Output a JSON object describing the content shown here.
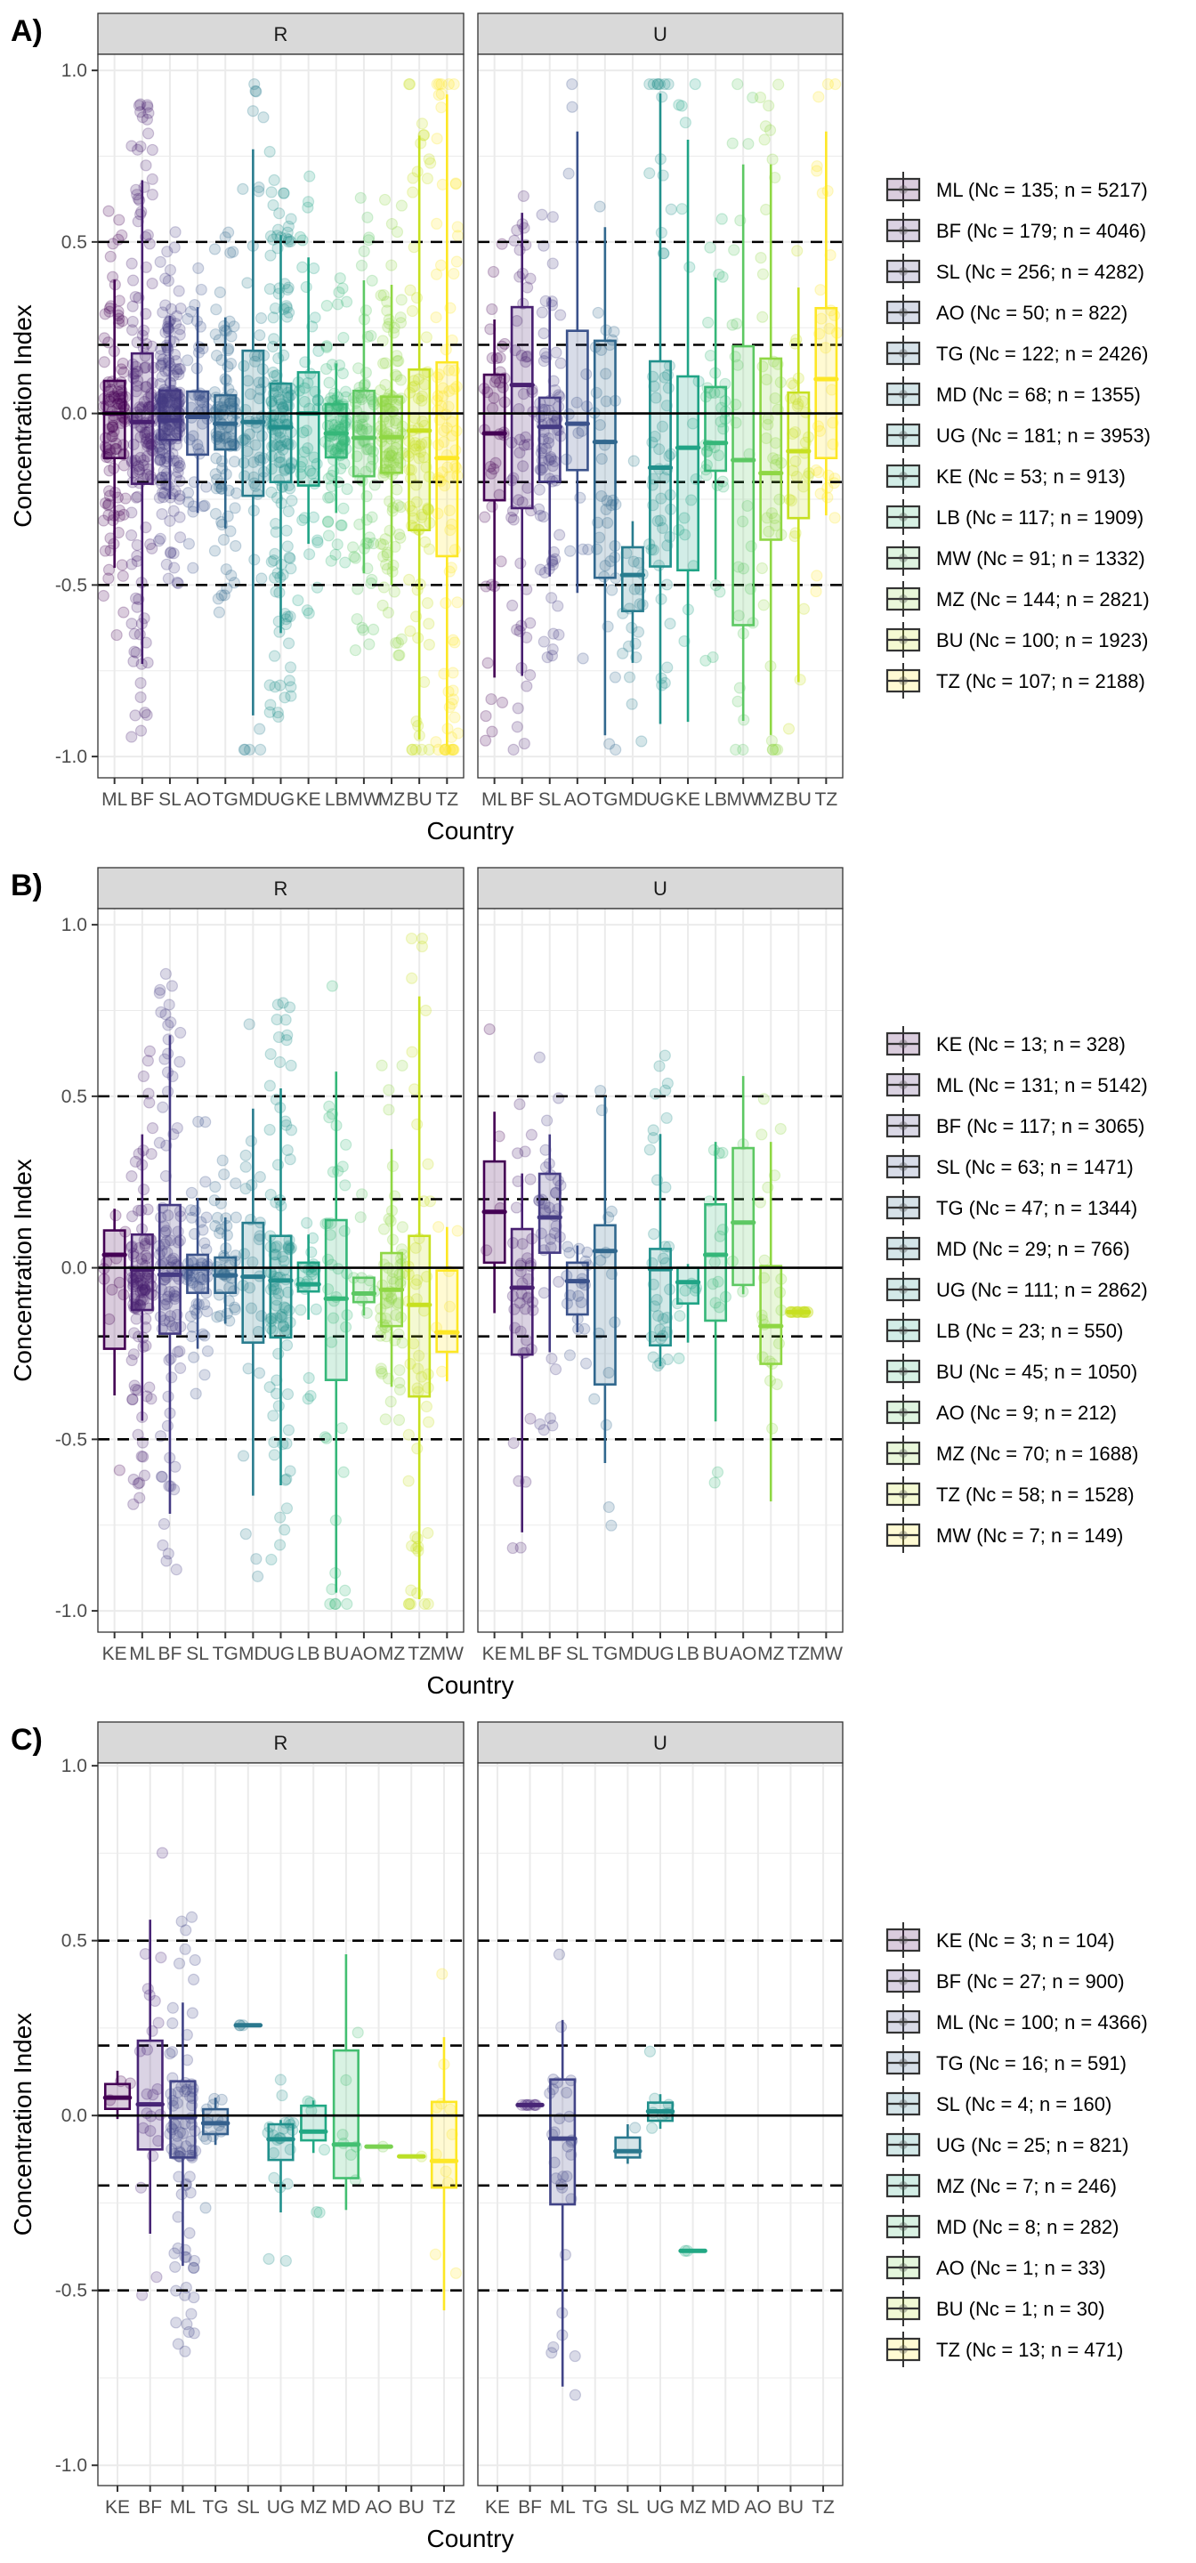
{
  "figure": {
    "reference_lines": [
      0.5,
      0.2,
      -0.2,
      -0.5
    ],
    "zero_line": 0
  },
  "chart_data": [
    {
      "type": "boxplot",
      "panel_label": "A)",
      "facets": [
        "R",
        "U"
      ],
      "xlabel": "Country",
      "ylabel": "Concentration Index",
      "ylim": [
        -1.062,
        1.047
      ],
      "yticks": [
        1.0,
        0.5,
        0.0,
        -0.5,
        -1.0
      ],
      "ytick_labels": [
        "1.0",
        "0.5",
        "0.0",
        "-0.5",
        "-1.0"
      ],
      "grid": true,
      "legend_position": "right",
      "categories": [
        "ML",
        "BF",
        "SL",
        "AO",
        "TG",
        "MD",
        "UG",
        "KE",
        "LB",
        "MW",
        "MZ",
        "BU",
        "TZ"
      ],
      "colors": [
        "#440154",
        "#481F70",
        "#443A83",
        "#3B528B",
        "#31688E",
        "#287C8E",
        "#21908C",
        "#20A486",
        "#35B779",
        "#5DC863",
        "#8FD744",
        "#C7E020",
        "#FDE725"
      ],
      "legend": [
        "ML (Nc = 135; n = 5217)",
        "BF (Nc = 179; n = 4046)",
        "SL (Nc = 256; n = 4282)",
        "AO (Nc = 50; n = 822)",
        "TG (Nc = 122; n = 2426)",
        "MD (Nc = 68; n = 1355)",
        "UG (Nc = 181; n = 3953)",
        "KE (Nc = 53; n = 913)",
        "LB (Nc = 117; n = 1909)",
        "MW (Nc = 91; n = 1332)",
        "MZ (Nc = 144; n = 2821)",
        "BU (Nc = 100; n = 1923)",
        "TZ (Nc = 107; n = 2188)"
      ],
      "point_counts": [
        135,
        179,
        256,
        50,
        122,
        68,
        181,
        53,
        117,
        91,
        144,
        100,
        107
      ],
      "series": {
        "R": [
          {
            "cat": "ML",
            "lo": -0.45,
            "q1": -0.13,
            "med": 0.0,
            "q3": 0.095,
            "hi": 0.39
          },
          {
            "cat": "BF",
            "lo": -0.73,
            "q1": -0.205,
            "med": -0.025,
            "q3": 0.175,
            "hi": 0.68
          },
          {
            "cat": "SL",
            "lo": -0.25,
            "q1": -0.077,
            "med": -0.02,
            "q3": 0.067,
            "hi": 0.285
          },
          {
            "cat": "AO",
            "lo": -0.29,
            "q1": -0.12,
            "med": -0.01,
            "q3": 0.064,
            "hi": 0.31
          },
          {
            "cat": "TG",
            "lo": -0.335,
            "q1": -0.105,
            "med": -0.03,
            "q3": 0.053,
            "hi": 0.28
          },
          {
            "cat": "MD",
            "lo": -0.88,
            "q1": -0.24,
            "med": -0.025,
            "q3": 0.183,
            "hi": 0.77
          },
          {
            "cat": "UG",
            "lo": -0.64,
            "q1": -0.2,
            "med": -0.04,
            "q3": 0.087,
            "hi": 0.52
          },
          {
            "cat": "KE",
            "lo": -0.38,
            "q1": -0.21,
            "med": 0.0,
            "q3": 0.12,
            "hi": 0.455
          },
          {
            "cat": "LB",
            "lo": -0.29,
            "q1": -0.128,
            "med": -0.058,
            "q3": 0.027,
            "hi": 0.146
          },
          {
            "cat": "MW",
            "lo": -0.466,
            "q1": -0.183,
            "med": -0.071,
            "q3": 0.066,
            "hi": 0.388
          },
          {
            "cat": "MZ",
            "lo": -0.5,
            "q1": -0.173,
            "med": -0.069,
            "q3": 0.049,
            "hi": 0.375
          },
          {
            "cat": "BU",
            "lo": -0.95,
            "q1": -0.34,
            "med": -0.05,
            "q3": 0.128,
            "hi": 0.81
          },
          {
            "cat": "TZ",
            "lo": -0.97,
            "q1": -0.416,
            "med": -0.13,
            "q3": 0.149,
            "hi": 0.93
          }
        ],
        "U": [
          {
            "cat": "ML",
            "lo": -0.77,
            "q1": -0.253,
            "med": -0.058,
            "q3": 0.113,
            "hi": 0.274
          },
          {
            "cat": "BF",
            "lo": -0.765,
            "q1": -0.276,
            "med": 0.083,
            "q3": 0.31,
            "hi": 0.585
          },
          {
            "cat": "SL",
            "lo": -0.475,
            "q1": -0.199,
            "med": -0.039,
            "q3": 0.046,
            "hi": 0.338
          },
          {
            "cat": "AO",
            "lo": -0.523,
            "q1": -0.165,
            "med": -0.03,
            "q3": 0.241,
            "hi": 0.822
          },
          {
            "cat": "TG",
            "lo": -0.938,
            "q1": -0.479,
            "med": -0.083,
            "q3": 0.212,
            "hi": 0.543
          },
          {
            "cat": "MD",
            "lo": -0.727,
            "q1": -0.576,
            "med": -0.471,
            "q3": -0.39,
            "hi": -0.314
          },
          {
            "cat": "UG",
            "lo": -0.905,
            "q1": -0.446,
            "med": -0.158,
            "q3": 0.152,
            "hi": 0.933
          },
          {
            "cat": "KE",
            "lo": -0.899,
            "q1": -0.457,
            "med": -0.1,
            "q3": 0.108,
            "hi": 0.798
          },
          {
            "cat": "LB",
            "lo": -0.484,
            "q1": -0.167,
            "med": -0.086,
            "q3": 0.077,
            "hi": 0.396
          },
          {
            "cat": "MW",
            "lo": -0.896,
            "q1": -0.617,
            "med": -0.136,
            "q3": 0.196,
            "hi": 0.726
          },
          {
            "cat": "MZ",
            "lo": -0.937,
            "q1": -0.368,
            "med": -0.174,
            "q3": 0.16,
            "hi": 0.726
          },
          {
            "cat": "BU",
            "lo": -0.783,
            "q1": -0.305,
            "med": -0.11,
            "q3": 0.061,
            "hi": 0.367
          },
          {
            "cat": "TZ",
            "lo": -0.297,
            "q1": -0.13,
            "med": 0.1,
            "q3": 0.307,
            "hi": 0.822
          }
        ]
      }
    },
    {
      "type": "boxplot",
      "panel_label": "B)",
      "facets": [
        "R",
        "U"
      ],
      "xlabel": "Country",
      "ylabel": "Concentration Index",
      "ylim": [
        -1.062,
        1.047
      ],
      "yticks": [
        1.0,
        0.5,
        0.0,
        -0.5,
        -1.0
      ],
      "ytick_labels": [
        "1.0",
        "0.5",
        "0.0",
        "-0.5",
        "-1.0"
      ],
      "grid": true,
      "legend_position": "right",
      "categories": [
        "KE",
        "ML",
        "BF",
        "SL",
        "TG",
        "MD",
        "UG",
        "LB",
        "BU",
        "AO",
        "MZ",
        "TZ",
        "MW"
      ],
      "colors": [
        "#440154",
        "#481F70",
        "#443A83",
        "#3B528B",
        "#31688E",
        "#287C8E",
        "#21908C",
        "#20A486",
        "#35B779",
        "#5DC863",
        "#8FD744",
        "#C7E020",
        "#FDE725"
      ],
      "legend": [
        "KE (Nc = 13; n = 328)",
        "ML (Nc = 131; n = 5142)",
        "BF (Nc = 117; n = 3065)",
        "SL (Nc = 63; n = 1471)",
        "TG (Nc = 47; n = 1344)",
        "MD (Nc = 29; n = 766)",
        "UG (Nc = 111; n = 2862)",
        "LB (Nc = 23; n = 550)",
        "BU (Nc = 45; n = 1050)",
        "AO (Nc = 9; n = 212)",
        "MZ (Nc = 70; n = 1688)",
        "TZ (Nc = 58; n = 1528)",
        "MW (Nc = 7; n = 149)"
      ],
      "point_counts": [
        13,
        131,
        117,
        63,
        47,
        29,
        111,
        23,
        45,
        9,
        70,
        58,
        7
      ],
      "series": {
        "R": [
          {
            "cat": "KE",
            "lo": -0.372,
            "q1": -0.236,
            "med": 0.038,
            "q3": 0.109,
            "hi": 0.172
          },
          {
            "cat": "ML",
            "lo": -0.446,
            "q1": -0.123,
            "med": -0.005,
            "q3": 0.097,
            "hi": 0.389
          },
          {
            "cat": "BF",
            "lo": -0.717,
            "q1": -0.192,
            "med": -0.02,
            "q3": 0.183,
            "hi": 0.678
          },
          {
            "cat": "SL",
            "lo": -0.236,
            "q1": -0.073,
            "med": -0.002,
            "q3": 0.038,
            "hi": 0.204
          },
          {
            "cat": "TG",
            "lo": -0.163,
            "q1": -0.073,
            "med": -0.022,
            "q3": 0.03,
            "hi": 0.147
          },
          {
            "cat": "MD",
            "lo": -0.664,
            "q1": -0.218,
            "med": -0.026,
            "q3": 0.131,
            "hi": 0.464
          },
          {
            "cat": "UG",
            "lo": -0.634,
            "q1": -0.203,
            "med": -0.037,
            "q3": 0.093,
            "hi": 0.523
          },
          {
            "cat": "LB",
            "lo": -0.151,
            "q1": -0.069,
            "med": -0.048,
            "q3": 0.015,
            "hi": 0.097
          },
          {
            "cat": "BU",
            "lo": -0.947,
            "q1": -0.327,
            "med": -0.09,
            "q3": 0.139,
            "hi": 0.572
          },
          {
            "cat": "AO",
            "lo": -0.139,
            "q1": -0.1,
            "med": -0.075,
            "q3": -0.029,
            "hi": -0.029
          },
          {
            "cat": "MZ",
            "lo": -0.347,
            "q1": -0.17,
            "med": -0.064,
            "q3": 0.043,
            "hi": 0.346
          },
          {
            "cat": "TZ",
            "lo": -0.966,
            "q1": -0.375,
            "med": -0.108,
            "q3": 0.093,
            "hi": 0.791
          },
          {
            "cat": "MW",
            "lo": -0.331,
            "q1": -0.245,
            "med": -0.188,
            "q3": -0.008,
            "hi": 0.119
          }
        ],
        "U": [
          {
            "cat": "KE",
            "lo": -0.132,
            "q1": 0.015,
            "med": 0.163,
            "q3": 0.31,
            "hi": 0.455
          },
          {
            "cat": "ML",
            "lo": -0.771,
            "q1": -0.253,
            "med": -0.058,
            "q3": 0.113,
            "hi": 0.275
          },
          {
            "cat": "BF",
            "lo": -0.246,
            "q1": 0.044,
            "med": 0.147,
            "q3": 0.274,
            "hi": 0.389
          },
          {
            "cat": "SL",
            "lo": -0.188,
            "q1": -0.136,
            "med": -0.039,
            "q3": 0.015,
            "hi": 0.065
          },
          {
            "cat": "TG",
            "lo": -0.569,
            "q1": -0.34,
            "med": 0.049,
            "q3": 0.124,
            "hi": 0.499
          },
          {
            "cat": "MD",
            "lo": null,
            "q1": null,
            "med": null,
            "q3": null,
            "hi": null
          },
          {
            "cat": "UG",
            "lo": -0.287,
            "q1": -0.226,
            "med": -0.004,
            "q3": 0.055,
            "hi": 0.39
          },
          {
            "cat": "LB",
            "lo": -0.218,
            "q1": -0.104,
            "med": -0.042,
            "q3": 0.0,
            "hi": 0.011
          },
          {
            "cat": "BU",
            "lo": -0.448,
            "q1": -0.154,
            "med": 0.038,
            "q3": 0.185,
            "hi": 0.367
          },
          {
            "cat": "AO",
            "lo": -0.077,
            "q1": -0.05,
            "med": 0.132,
            "q3": 0.349,
            "hi": 0.559
          },
          {
            "cat": "MZ",
            "lo": -0.681,
            "q1": -0.28,
            "med": -0.17,
            "q3": 0.005,
            "hi": 0.367
          },
          {
            "cat": "TZ",
            "lo": -0.129,
            "q1": -0.129,
            "med": -0.129,
            "q3": -0.129,
            "hi": -0.129
          },
          {
            "cat": "MW",
            "lo": null,
            "q1": null,
            "med": null,
            "q3": null,
            "hi": null
          }
        ]
      }
    },
    {
      "type": "boxplot",
      "panel_label": "C)",
      "facets": [
        "R",
        "U"
      ],
      "xlabel": "Country",
      "ylabel": "Concentration Index",
      "ylim": [
        -1.058,
        1.008
      ],
      "yticks": [
        1.0,
        0.5,
        0.0,
        -0.5,
        -1.0
      ],
      "ytick_labels": [
        "1.0",
        "0.5",
        "0.0",
        "-0.5",
        "-1.0"
      ],
      "grid": true,
      "legend_position": "right",
      "categories": [
        "KE",
        "BF",
        "ML",
        "TG",
        "SL",
        "UG",
        "MZ",
        "MD",
        "AO",
        "BU",
        "TZ"
      ],
      "colors": [
        "#440154",
        "#482576",
        "#414487",
        "#35608D",
        "#2A788E",
        "#21908C",
        "#22A884",
        "#43BF71",
        "#7AD151",
        "#BBDF27",
        "#FDE725"
      ],
      "legend": [
        "KE (Nc = 3; n = 104)",
        "BF (Nc = 27; n = 900)",
        "ML (Nc = 100; n = 4366)",
        "TG (Nc = 16; n = 591)",
        "SL (Nc = 4; n = 160)",
        "UG (Nc = 25; n = 821)",
        "MZ (Nc = 7; n = 246)",
        "MD (Nc = 8; n = 282)",
        "AO (Nc = 1; n = 33)",
        "BU (Nc = 1; n = 30)",
        "TZ (Nc = 13; n = 471)"
      ],
      "point_counts": [
        3,
        27,
        100,
        16,
        4,
        25,
        7,
        8,
        1,
        1,
        13
      ],
      "series": {
        "R": [
          {
            "cat": "KE",
            "lo": -0.01,
            "q1": 0.019,
            "med": 0.051,
            "q3": 0.09,
            "hi": 0.128
          },
          {
            "cat": "BF",
            "lo": -0.338,
            "q1": -0.097,
            "med": 0.032,
            "q3": 0.214,
            "hi": 0.56
          },
          {
            "cat": "ML",
            "lo": -0.43,
            "q1": -0.12,
            "med": -0.005,
            "q3": 0.098,
            "hi": 0.323
          },
          {
            "cat": "TG",
            "lo": -0.084,
            "q1": -0.053,
            "med": -0.022,
            "q3": 0.018,
            "hi": 0.051
          },
          {
            "cat": "SL",
            "lo": 0.258,
            "q1": 0.258,
            "med": 0.258,
            "q3": 0.258,
            "hi": 0.258
          },
          {
            "cat": "UG",
            "lo": -0.277,
            "q1": -0.127,
            "med": -0.068,
            "q3": -0.025,
            "hi": -0.013
          },
          {
            "cat": "MZ",
            "lo": -0.107,
            "q1": -0.071,
            "med": -0.046,
            "q3": 0.028,
            "hi": 0.043
          },
          {
            "cat": "MD",
            "lo": -0.27,
            "q1": -0.179,
            "med": -0.083,
            "q3": 0.186,
            "hi": 0.461
          },
          {
            "cat": "AO",
            "lo": -0.089,
            "q1": -0.089,
            "med": -0.089,
            "q3": -0.089,
            "hi": -0.089
          },
          {
            "cat": "BU",
            "lo": -0.117,
            "q1": -0.117,
            "med": -0.117,
            "q3": -0.117,
            "hi": -0.117
          },
          {
            "cat": "TZ",
            "lo": -0.557,
            "q1": -0.206,
            "med": -0.13,
            "q3": 0.039,
            "hi": 0.224
          }
        ],
        "U": [
          {
            "cat": "KE",
            "lo": null,
            "q1": null,
            "med": null,
            "q3": null,
            "hi": null
          },
          {
            "cat": "BF",
            "lo": 0.03,
            "q1": 0.03,
            "med": 0.03,
            "q3": 0.03,
            "hi": 0.03
          },
          {
            "cat": "ML",
            "lo": -0.775,
            "q1": -0.254,
            "med": -0.066,
            "q3": 0.103,
            "hi": 0.273
          },
          {
            "cat": "TG",
            "lo": null,
            "q1": null,
            "med": null,
            "q3": null,
            "hi": null
          },
          {
            "cat": "SL",
            "lo": -0.138,
            "q1": -0.12,
            "med": -0.102,
            "q3": -0.063,
            "hi": -0.025
          },
          {
            "cat": "UG",
            "lo": -0.038,
            "q1": -0.015,
            "med": 0.012,
            "q3": 0.037,
            "hi": 0.061
          },
          {
            "cat": "MZ",
            "lo": -0.387,
            "q1": -0.387,
            "med": -0.387,
            "q3": -0.387,
            "hi": -0.387
          },
          {
            "cat": "MD",
            "lo": null,
            "q1": null,
            "med": null,
            "q3": null,
            "hi": null
          },
          {
            "cat": "AO",
            "lo": null,
            "q1": null,
            "med": null,
            "q3": null,
            "hi": null
          },
          {
            "cat": "BU",
            "lo": null,
            "q1": null,
            "med": null,
            "q3": null,
            "hi": null
          },
          {
            "cat": "TZ",
            "lo": null,
            "q1": null,
            "med": null,
            "q3": null,
            "hi": null
          }
        ]
      }
    }
  ]
}
